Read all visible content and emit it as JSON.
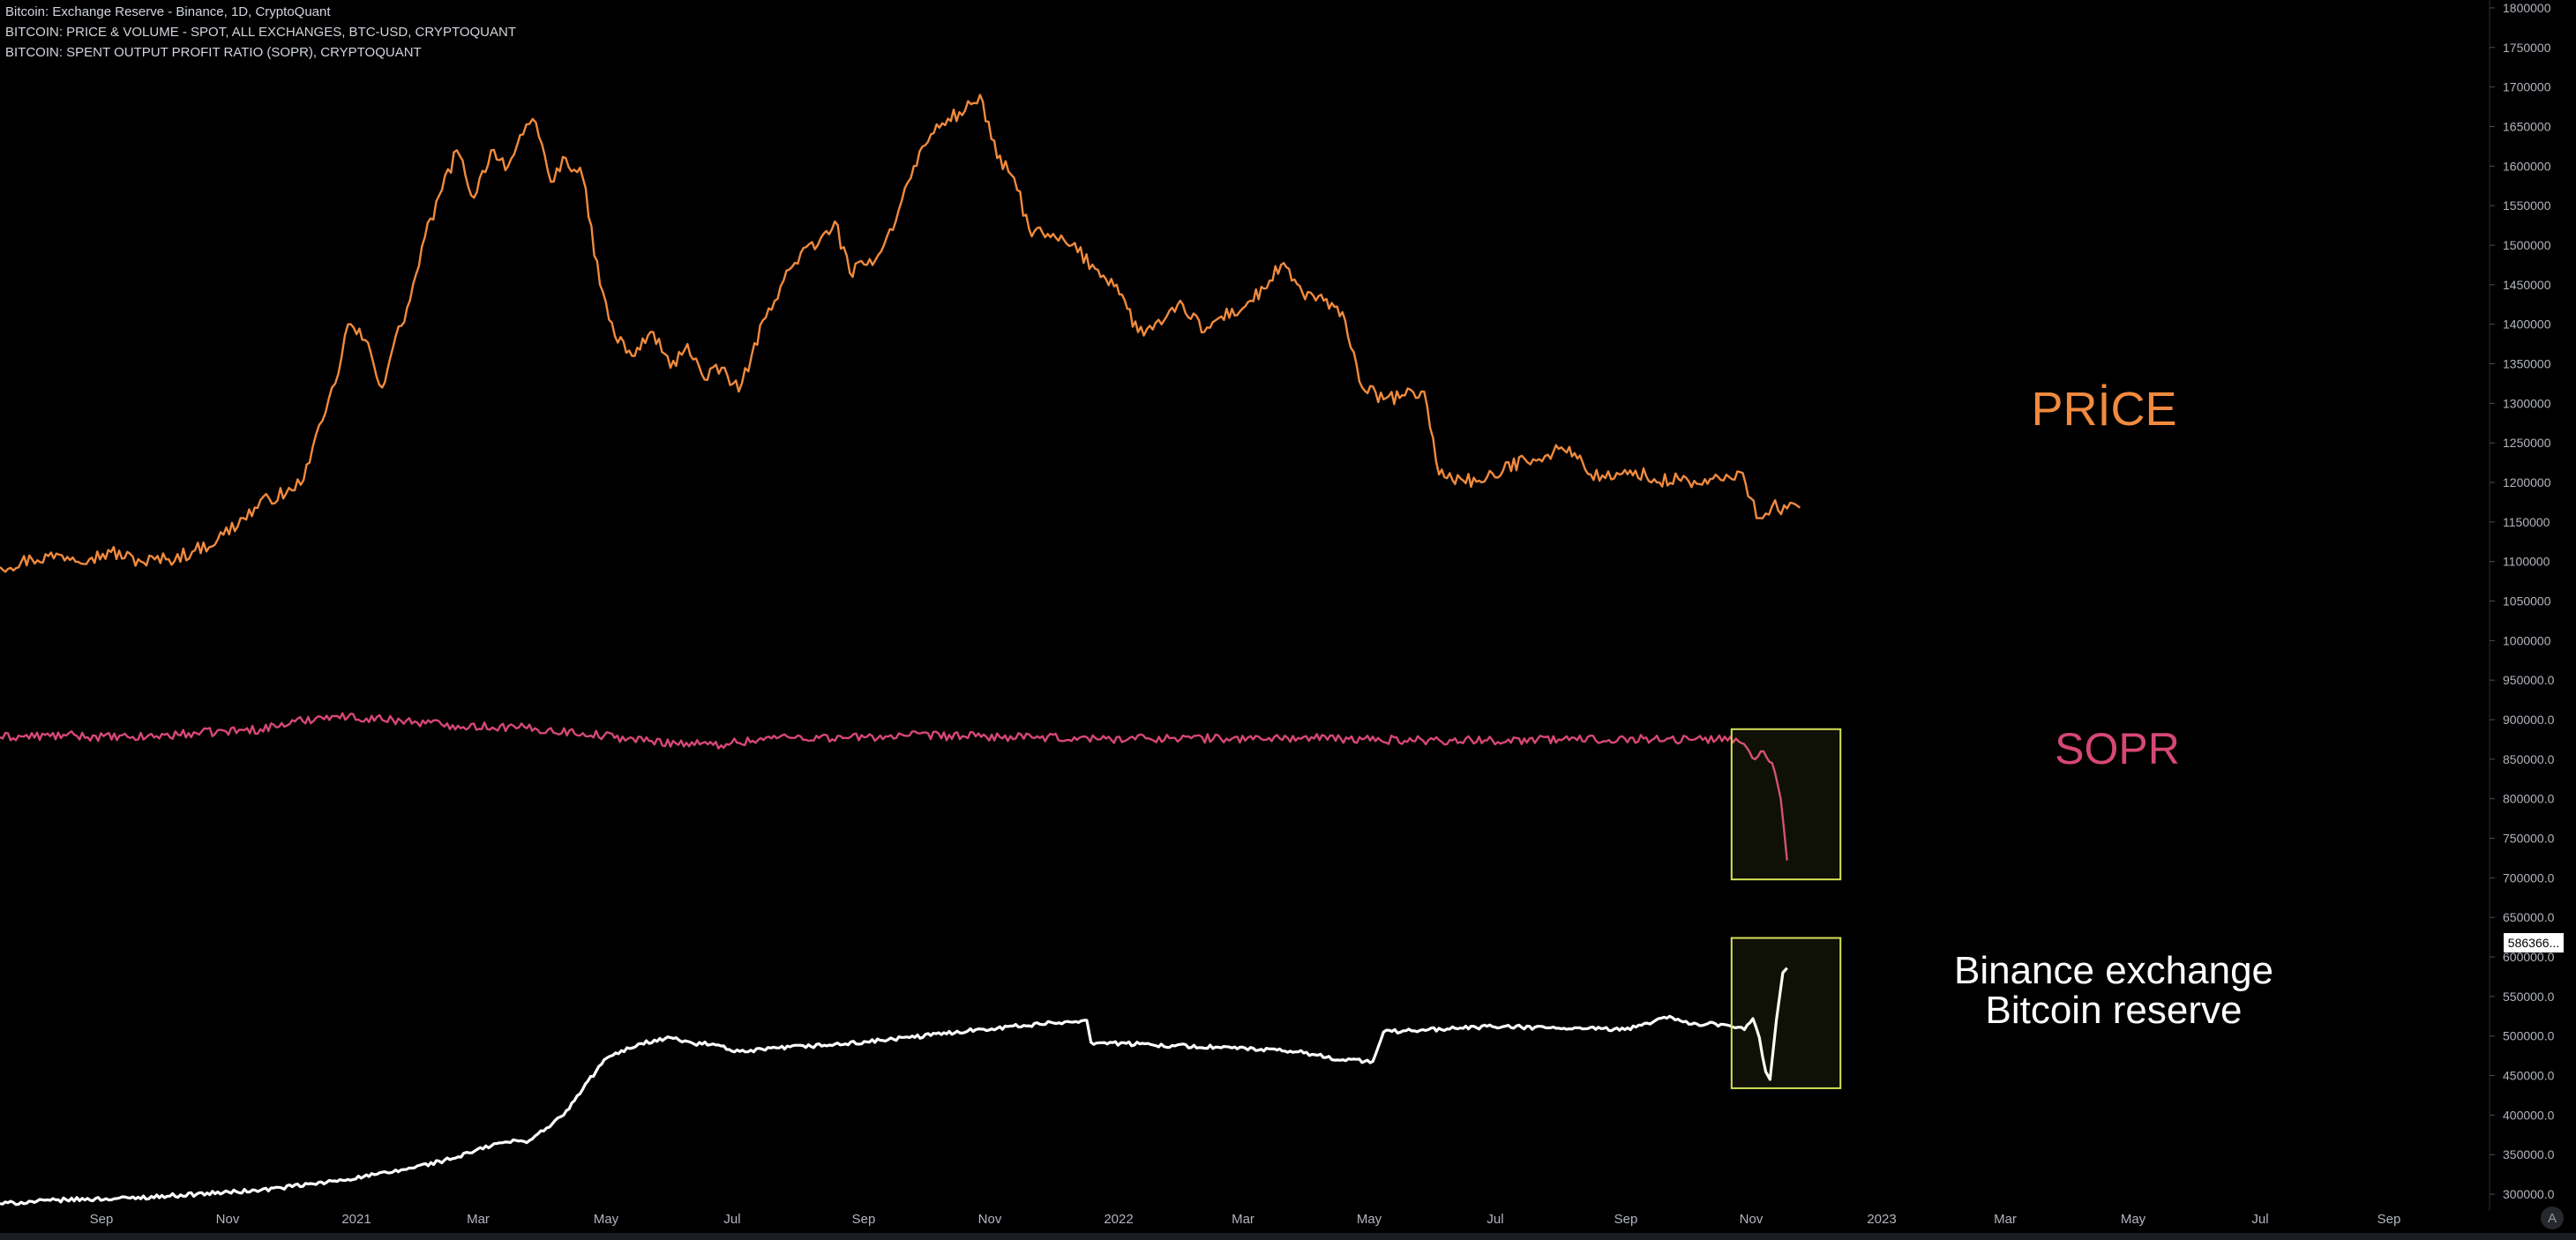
{
  "legend": [
    "Bitcoin: Exchange Reserve - Binance, 1D, CryptoQuant",
    "BITCOIN: PRICE & VOLUME - SPOT, ALL EXCHANGES, BTC-USD, CRYPTOQUANT",
    "BITCOIN: SPENT OUTPUT PROFIT RATIO (SOPR), CRYPTOQUANT"
  ],
  "colors": {
    "background": "#000000",
    "price": "#f08a3e",
    "sopr": "#d64874",
    "reserve": "#ffffff",
    "highlight_box": "#d4e157",
    "axis_text": "#b2b5be"
  },
  "annotations": {
    "price": "PRİCE",
    "sopr": "SOPR",
    "reserve_line1": "Binance exchange",
    "reserve_line2": "Bitcoin reserve"
  },
  "price_tag": "586366...",
  "corner_button": "A",
  "chart_data": {
    "type": "line",
    "title": "Bitcoin: Exchange Reserve - Binance, 1D, CryptoQuant",
    "x_ticks": [
      "Sep",
      "Nov",
      "2021",
      "Mar",
      "May",
      "Jul",
      "Sep",
      "Nov",
      "2022",
      "Mar",
      "May",
      "Jul",
      "Sep",
      "Nov",
      "2023",
      "Mar",
      "May",
      "Jul",
      "Sep"
    ],
    "x_range": [
      "2020-08-10",
      "2023-10-20"
    ],
    "y_ticks": [
      "1800000",
      "1750000",
      "1700000",
      "1650000",
      "1600000",
      "1550000",
      "1500000",
      "1450000",
      "1400000",
      "1350000",
      "1300000",
      "1250000",
      "1200000",
      "1150000",
      "1100000",
      "1050000",
      "1000000",
      "950000.0",
      "900000.0",
      "850000.0",
      "800000.0",
      "750000.0",
      "700000.0",
      "650000.0",
      "600000.0",
      "550000.0",
      "500000.0",
      "450000.0",
      "400000.0",
      "350000.0",
      "300000.0"
    ],
    "ylim": [
      280000,
      1810000
    ],
    "grid": false,
    "series": [
      {
        "name": "PRİCE",
        "color": "#f08a3e",
        "points": [
          [
            "2020-08-10",
            1093000
          ],
          [
            "2020-08-25",
            1103000
          ],
          [
            "2020-09-08",
            1108000
          ],
          [
            "2020-09-22",
            1105000
          ],
          [
            "2020-10-01",
            1112000
          ],
          [
            "2020-10-15",
            1100000
          ],
          [
            "2020-10-28",
            1103000
          ],
          [
            "2020-11-08",
            1112000
          ],
          [
            "2020-11-20",
            1128000
          ],
          [
            "2020-12-02",
            1155000
          ],
          [
            "2020-12-14",
            1180000
          ],
          [
            "2020-12-26",
            1190000
          ],
          [
            "2021-01-02",
            1225000
          ],
          [
            "2021-01-08",
            1278000
          ],
          [
            "2021-01-14",
            1325000
          ],
          [
            "2021-01-20",
            1400000
          ],
          [
            "2021-01-28",
            1380000
          ],
          [
            "2021-02-05",
            1320000
          ],
          [
            "2021-02-10",
            1370000
          ],
          [
            "2021-02-18",
            1430000
          ],
          [
            "2021-02-25",
            1510000
          ],
          [
            "2021-03-05",
            1570000
          ],
          [
            "2021-03-12",
            1620000
          ],
          [
            "2021-03-20",
            1560000
          ],
          [
            "2021-03-28",
            1620000
          ],
          [
            "2021-04-05",
            1600000
          ],
          [
            "2021-04-12",
            1640000
          ],
          [
            "2021-04-18",
            1655000
          ],
          [
            "2021-04-25",
            1580000
          ],
          [
            "2021-05-02",
            1610000
          ],
          [
            "2021-05-10",
            1585000
          ],
          [
            "2021-05-18",
            1450000
          ],
          [
            "2021-05-25",
            1385000
          ],
          [
            "2021-06-02",
            1360000
          ],
          [
            "2021-06-12",
            1390000
          ],
          [
            "2021-06-20",
            1345000
          ],
          [
            "2021-06-28",
            1375000
          ],
          [
            "2021-07-06",
            1330000
          ],
          [
            "2021-07-14",
            1345000
          ],
          [
            "2021-07-22",
            1315000
          ],
          [
            "2021-07-28",
            1360000
          ],
          [
            "2021-08-05",
            1420000
          ],
          [
            "2021-08-12",
            1455000
          ],
          [
            "2021-08-20",
            1490000
          ],
          [
            "2021-08-28",
            1500000
          ],
          [
            "2021-09-05",
            1530000
          ],
          [
            "2021-09-12",
            1465000
          ],
          [
            "2021-09-20",
            1475000
          ],
          [
            "2021-09-28",
            1500000
          ],
          [
            "2021-10-05",
            1545000
          ],
          [
            "2021-10-12",
            1600000
          ],
          [
            "2021-10-20",
            1640000
          ],
          [
            "2021-10-28",
            1660000
          ],
          [
            "2021-11-05",
            1670000
          ],
          [
            "2021-11-12",
            1690000
          ],
          [
            "2021-11-20",
            1610000
          ],
          [
            "2021-11-28",
            1585000
          ],
          [
            "2021-12-05",
            1520000
          ],
          [
            "2021-12-15",
            1510000
          ],
          [
            "2021-12-25",
            1500000
          ],
          [
            "2022-01-05",
            1470000
          ],
          [
            "2022-01-15",
            1450000
          ],
          [
            "2022-01-25",
            1390000
          ],
          [
            "2022-02-05",
            1400000
          ],
          [
            "2022-02-15",
            1425000
          ],
          [
            "2022-02-25",
            1390000
          ],
          [
            "2022-03-05",
            1410000
          ],
          [
            "2022-03-15",
            1420000
          ],
          [
            "2022-03-25",
            1445000
          ],
          [
            "2022-04-02",
            1475000
          ],
          [
            "2022-04-12",
            1440000
          ],
          [
            "2022-04-22",
            1430000
          ],
          [
            "2022-05-02",
            1405000
          ],
          [
            "2022-05-10",
            1320000
          ],
          [
            "2022-05-20",
            1305000
          ],
          [
            "2022-05-30",
            1310000
          ],
          [
            "2022-06-08",
            1315000
          ],
          [
            "2022-06-15",
            1210000
          ],
          [
            "2022-06-25",
            1205000
          ],
          [
            "2022-07-05",
            1200000
          ],
          [
            "2022-07-15",
            1215000
          ],
          [
            "2022-07-25",
            1230000
          ],
          [
            "2022-08-05",
            1235000
          ],
          [
            "2022-08-15",
            1245000
          ],
          [
            "2022-08-25",
            1210000
          ],
          [
            "2022-09-05",
            1205000
          ],
          [
            "2022-09-15",
            1215000
          ],
          [
            "2022-09-25",
            1200000
          ],
          [
            "2022-10-05",
            1205000
          ],
          [
            "2022-10-15",
            1198000
          ],
          [
            "2022-10-25",
            1203000
          ],
          [
            "2022-11-03",
            1213000
          ],
          [
            "2022-11-08",
            1180000
          ],
          [
            "2022-11-12",
            1155000
          ],
          [
            "2022-11-18",
            1170000
          ],
          [
            "2022-11-25",
            1167000
          ],
          [
            "2022-12-01",
            1168000
          ]
        ]
      },
      {
        "name": "SOPR",
        "color": "#d64874",
        "points": [
          [
            "2020-08-10",
            878000
          ],
          [
            "2020-09-10",
            880000
          ],
          [
            "2020-10-10",
            877000
          ],
          [
            "2020-11-10",
            883000
          ],
          [
            "2020-12-10",
            888000
          ],
          [
            "2021-01-10",
            905000
          ],
          [
            "2021-02-10",
            900000
          ],
          [
            "2021-03-10",
            893000
          ],
          [
            "2021-04-10",
            890000
          ],
          [
            "2021-05-10",
            883000
          ],
          [
            "2021-06-10",
            873000
          ],
          [
            "2021-07-10",
            868000
          ],
          [
            "2021-08-10",
            878000
          ],
          [
            "2021-09-10",
            877000
          ],
          [
            "2021-10-10",
            880000
          ],
          [
            "2021-11-10",
            879000
          ],
          [
            "2021-12-10",
            877000
          ],
          [
            "2022-01-10",
            876000
          ],
          [
            "2022-02-10",
            877000
          ],
          [
            "2022-03-10",
            876000
          ],
          [
            "2022-04-10",
            877000
          ],
          [
            "2022-05-10",
            875000
          ],
          [
            "2022-06-10",
            874000
          ],
          [
            "2022-07-10",
            874000
          ],
          [
            "2022-08-10",
            875000
          ],
          [
            "2022-09-10",
            876000
          ],
          [
            "2022-10-10",
            875000
          ],
          [
            "2022-11-01",
            876000
          ],
          [
            "2022-11-06",
            865000
          ],
          [
            "2022-11-10",
            850000
          ],
          [
            "2022-11-14",
            860000
          ],
          [
            "2022-11-18",
            845000
          ],
          [
            "2022-11-22",
            800000
          ],
          [
            "2022-11-25",
            722000
          ]
        ]
      },
      {
        "name": "Binance exchange Bitcoin reserve",
        "color": "#ffffff",
        "points": [
          [
            "2020-08-10",
            288000
          ],
          [
            "2020-09-10",
            293000
          ],
          [
            "2020-10-10",
            295000
          ],
          [
            "2020-11-10",
            300000
          ],
          [
            "2020-12-10",
            305000
          ],
          [
            "2021-01-10",
            315000
          ],
          [
            "2021-02-10",
            328000
          ],
          [
            "2021-03-10",
            345000
          ],
          [
            "2021-04-01",
            365000
          ],
          [
            "2021-04-15",
            368000
          ],
          [
            "2021-05-01",
            400000
          ],
          [
            "2021-05-20",
            470000
          ],
          [
            "2021-06-05",
            490000
          ],
          [
            "2021-06-20",
            498000
          ],
          [
            "2021-07-01",
            490000
          ],
          [
            "2021-07-10",
            490000
          ],
          [
            "2021-07-20",
            480000
          ],
          [
            "2021-07-25",
            480000
          ],
          [
            "2021-08-10",
            485000
          ],
          [
            "2021-09-10",
            490000
          ],
          [
            "2021-10-10",
            498000
          ],
          [
            "2021-11-10",
            508000
          ],
          [
            "2021-12-10",
            515000
          ],
          [
            "2022-01-01",
            520000
          ],
          [
            "2022-01-03",
            492000
          ],
          [
            "2022-02-10",
            488000
          ],
          [
            "2022-03-10",
            485000
          ],
          [
            "2022-04-10",
            480000
          ],
          [
            "2022-05-01",
            470000
          ],
          [
            "2022-05-15",
            468000
          ],
          [
            "2022-05-20",
            505000
          ],
          [
            "2022-06-10",
            508000
          ],
          [
            "2022-07-10",
            512000
          ],
          [
            "2022-08-10",
            510000
          ],
          [
            "2022-09-10",
            508000
          ],
          [
            "2022-10-01",
            525000
          ],
          [
            "2022-10-10",
            515000
          ],
          [
            "2022-10-25",
            515000
          ],
          [
            "2022-11-05",
            508000
          ],
          [
            "2022-11-09",
            522000
          ],
          [
            "2022-11-12",
            498000
          ],
          [
            "2022-11-15",
            455000
          ],
          [
            "2022-11-17",
            445000
          ],
          [
            "2022-11-20",
            520000
          ],
          [
            "2022-11-23",
            580000
          ],
          [
            "2022-11-25",
            586000
          ]
        ]
      }
    ],
    "highlight_boxes": [
      {
        "x": [
          "2022-10-30",
          "2022-12-20"
        ],
        "y": [
          698000,
          888000
        ]
      },
      {
        "x": [
          "2022-10-30",
          "2022-12-20"
        ],
        "y": [
          434000,
          624000
        ]
      }
    ]
  }
}
